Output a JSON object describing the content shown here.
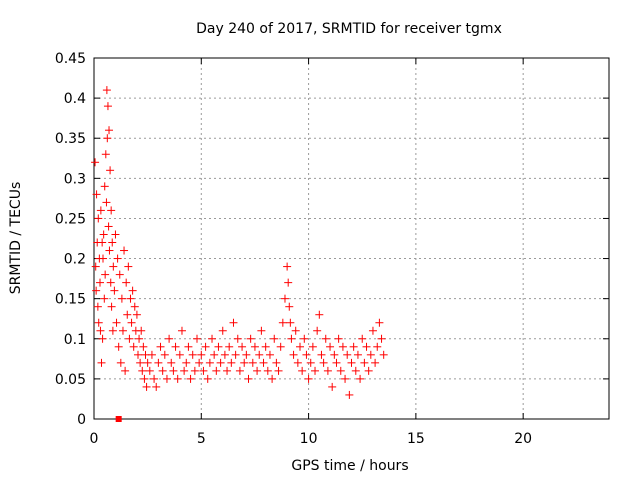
{
  "chart_data": {
    "type": "scatter",
    "title": "Day 240 of 2017, SRMTID for receiver tgmx",
    "xlabel": "GPS time / hours",
    "ylabel": "SRMTID / TECUs",
    "xlim": [
      0,
      24
    ],
    "ylim": [
      0,
      0.45
    ],
    "x_ticks": [
      "0",
      "5",
      "10",
      "15",
      "20"
    ],
    "y_ticks": [
      "0",
      "0.05",
      "0.1",
      "0.15",
      "0.2",
      "0.25",
      "0.3",
      "0.35",
      "0.4",
      "0.45"
    ],
    "grid": true,
    "marker": "+",
    "color": "#ff0000",
    "series": [
      {
        "name": "SRMTID",
        "x": [
          0.05,
          0.08,
          0.1,
          0.12,
          0.15,
          0.18,
          0.2,
          0.22,
          0.25,
          0.28,
          0.3,
          0.32,
          0.35,
          0.38,
          0.4,
          0.42,
          0.45,
          0.48,
          0.5,
          0.52,
          0.55,
          0.58,
          0.6,
          0.62,
          0.65,
          0.68,
          0.7,
          0.72,
          0.75,
          0.78,
          0.8,
          0.82,
          0.85,
          0.88,
          0.9,
          0.95,
          1.0,
          1.05,
          1.1,
          1.15,
          1.2,
          1.25,
          1.3,
          1.35,
          1.4,
          1.45,
          1.5,
          1.55,
          1.6,
          1.65,
          1.7,
          1.75,
          1.8,
          1.85,
          1.9,
          1.95,
          2.0,
          2.05,
          2.1,
          2.15,
          2.2,
          2.25,
          2.3,
          2.35,
          2.4,
          2.45,
          2.5,
          2.6,
          2.7,
          2.8,
          2.9,
          3.0,
          3.1,
          3.2,
          3.3,
          3.4,
          3.5,
          3.6,
          3.7,
          3.8,
          3.9,
          4.0,
          4.1,
          4.2,
          4.3,
          4.4,
          4.5,
          4.6,
          4.7,
          4.8,
          4.9,
          5.0,
          5.1,
          5.2,
          5.3,
          5.4,
          5.5,
          5.6,
          5.7,
          5.8,
          5.9,
          6.0,
          6.1,
          6.2,
          6.3,
          6.4,
          6.5,
          6.6,
          6.7,
          6.8,
          6.9,
          7.0,
          7.1,
          7.2,
          7.3,
          7.4,
          7.5,
          7.6,
          7.7,
          7.8,
          7.9,
          8.0,
          8.1,
          8.2,
          8.3,
          8.4,
          8.5,
          8.6,
          8.7,
          8.8,
          8.9,
          9.0,
          9.05,
          9.1,
          9.15,
          9.2,
          9.3,
          9.4,
          9.5,
          9.6,
          9.7,
          9.8,
          9.9,
          10.0,
          10.1,
          10.2,
          10.3,
          10.4,
          10.5,
          10.6,
          10.7,
          10.8,
          10.9,
          11.0,
          11.1,
          11.2,
          11.3,
          11.4,
          11.5,
          11.6,
          11.7,
          11.8,
          11.9,
          12.0,
          12.1,
          12.2,
          12.3,
          12.4,
          12.5,
          12.6,
          12.7,
          12.8,
          12.9,
          13.0,
          13.1,
          13.2,
          13.3,
          13.4,
          13.5
        ],
        "y": [
          0.32,
          0.19,
          0.16,
          0.28,
          0.22,
          0.14,
          0.25,
          0.12,
          0.2,
          0.17,
          0.11,
          0.26,
          0.07,
          0.22,
          0.1,
          0.2,
          0.23,
          0.15,
          0.29,
          0.18,
          0.33,
          0.27,
          0.41,
          0.35,
          0.39,
          0.24,
          0.36,
          0.21,
          0.31,
          0.17,
          0.26,
          0.14,
          0.22,
          0.11,
          0.19,
          0.16,
          0.23,
          0.12,
          0.2,
          0.09,
          0.18,
          0.07,
          0.15,
          0.11,
          0.21,
          0.06,
          0.17,
          0.13,
          0.19,
          0.1,
          0.15,
          0.12,
          0.16,
          0.09,
          0.14,
          0.11,
          0.13,
          0.08,
          0.1,
          0.07,
          0.11,
          0.06,
          0.09,
          0.05,
          0.08,
          0.04,
          0.07,
          0.06,
          0.08,
          0.05,
          0.04,
          0.07,
          0.09,
          0.06,
          0.08,
          0.05,
          0.1,
          0.07,
          0.06,
          0.09,
          0.05,
          0.08,
          0.11,
          0.06,
          0.07,
          0.09,
          0.05,
          0.08,
          0.06,
          0.1,
          0.07,
          0.08,
          0.06,
          0.09,
          0.05,
          0.07,
          0.1,
          0.08,
          0.06,
          0.09,
          0.07,
          0.11,
          0.08,
          0.06,
          0.09,
          0.07,
          0.12,
          0.08,
          0.1,
          0.06,
          0.09,
          0.07,
          0.08,
          0.05,
          0.1,
          0.07,
          0.09,
          0.06,
          0.08,
          0.11,
          0.07,
          0.09,
          0.06,
          0.08,
          0.05,
          0.1,
          0.07,
          0.06,
          0.09,
          0.12,
          0.15,
          0.19,
          0.17,
          0.14,
          0.12,
          0.1,
          0.08,
          0.11,
          0.07,
          0.09,
          0.06,
          0.1,
          0.08,
          0.05,
          0.07,
          0.09,
          0.06,
          0.11,
          0.13,
          0.08,
          0.07,
          0.1,
          0.06,
          0.09,
          0.04,
          0.08,
          0.07,
          0.1,
          0.06,
          0.09,
          0.05,
          0.08,
          0.03,
          0.07,
          0.09,
          0.06,
          0.08,
          0.05,
          0.1,
          0.07,
          0.09,
          0.06,
          0.08,
          0.11,
          0.07,
          0.09,
          0.12,
          0.1,
          0.08
        ]
      }
    ],
    "extra_marks": [
      {
        "x": 1.15,
        "y": 0.0,
        "marker": "square"
      }
    ]
  }
}
